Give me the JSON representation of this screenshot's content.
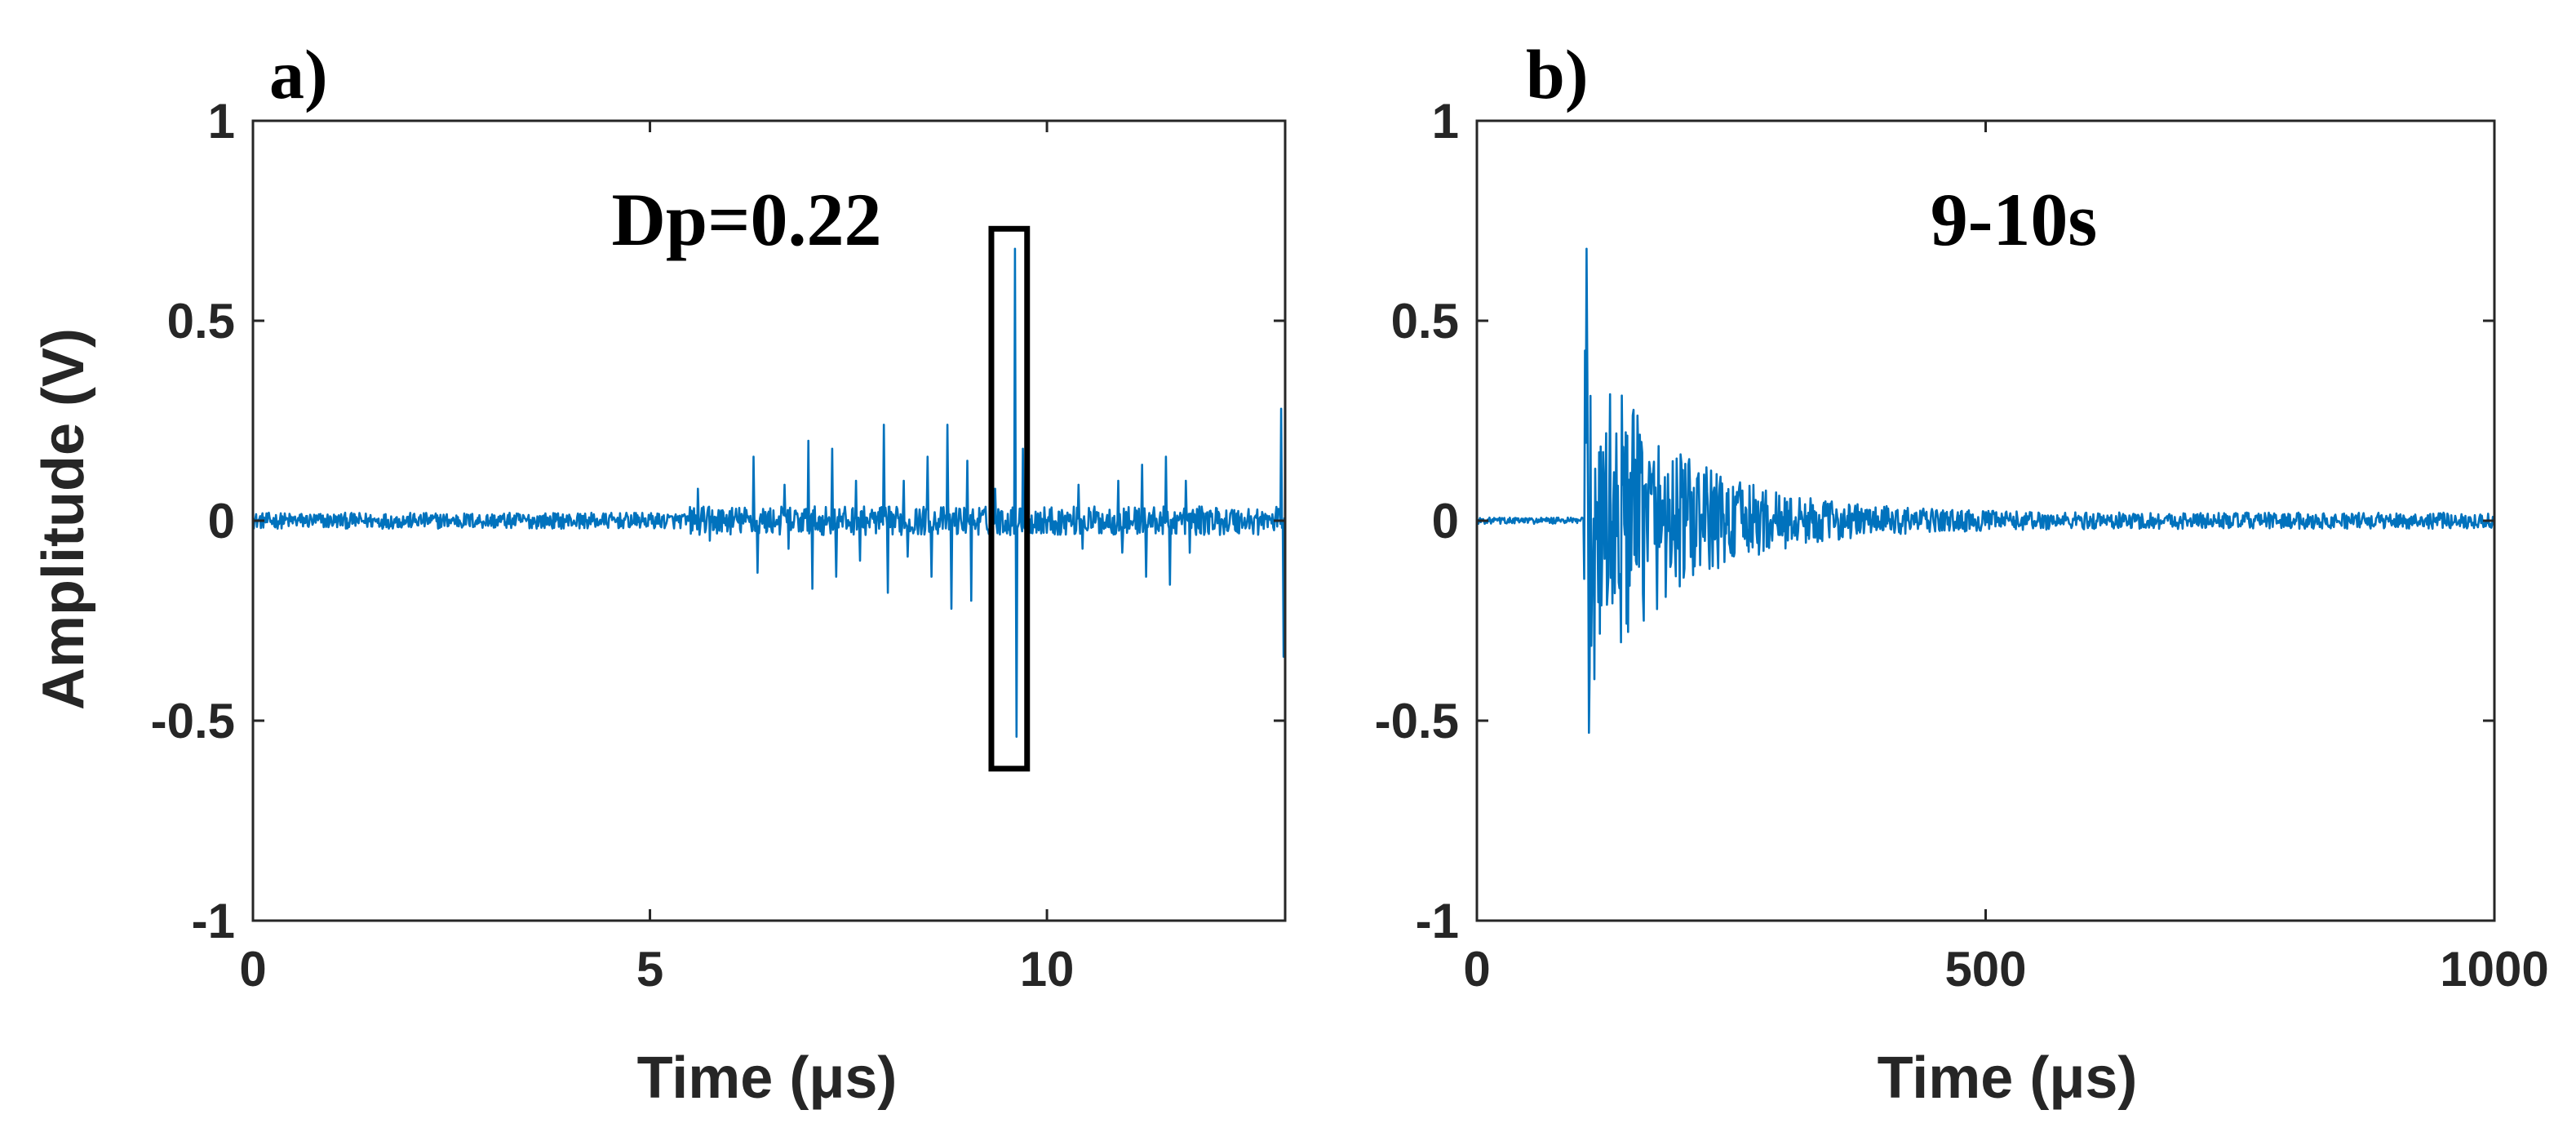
{
  "chart_data": [
    {
      "type": "line",
      "panel_label": "a)",
      "annotation": "Dp=0.22",
      "xlabel": "Time (μs)",
      "ylabel": "Amplitude (V)",
      "xlim": [
        0,
        13
      ],
      "ylim": [
        -1,
        1
      ],
      "xticks": [
        "0",
        "5",
        "10"
      ],
      "yticks": [
        "1",
        "0.5",
        "0",
        "-0.5",
        "-1"
      ],
      "grid": false,
      "line_color": "#0072BD",
      "noise_floor": 0.02,
      "spikes": [
        {
          "x": 5.6,
          "y": 0.08
        },
        {
          "x": 5.75,
          "y": -0.05
        },
        {
          "x": 6.3,
          "y": 0.16
        },
        {
          "x": 6.35,
          "y": -0.13
        },
        {
          "x": 6.7,
          "y": 0.09
        },
        {
          "x": 6.75,
          "y": -0.07
        },
        {
          "x": 7.0,
          "y": 0.2
        },
        {
          "x": 7.05,
          "y": -0.17
        },
        {
          "x": 7.3,
          "y": 0.18
        },
        {
          "x": 7.35,
          "y": -0.14
        },
        {
          "x": 7.6,
          "y": 0.1
        },
        {
          "x": 7.65,
          "y": -0.1
        },
        {
          "x": 7.95,
          "y": 0.24
        },
        {
          "x": 8.0,
          "y": -0.18
        },
        {
          "x": 8.2,
          "y": 0.1
        },
        {
          "x": 8.25,
          "y": -0.09
        },
        {
          "x": 8.5,
          "y": 0.16
        },
        {
          "x": 8.55,
          "y": -0.14
        },
        {
          "x": 8.75,
          "y": 0.24
        },
        {
          "x": 8.8,
          "y": -0.22
        },
        {
          "x": 9.0,
          "y": 0.15
        },
        {
          "x": 9.05,
          "y": -0.2
        },
        {
          "x": 9.35,
          "y": 0.08
        },
        {
          "x": 9.6,
          "y": 0.68
        },
        {
          "x": 9.62,
          "y": -0.54
        },
        {
          "x": 9.7,
          "y": 0.18
        },
        {
          "x": 9.75,
          "y": -0.15
        },
        {
          "x": 10.4,
          "y": 0.09
        },
        {
          "x": 10.45,
          "y": -0.07
        },
        {
          "x": 10.9,
          "y": 0.1
        },
        {
          "x": 10.95,
          "y": -0.08
        },
        {
          "x": 11.2,
          "y": 0.14
        },
        {
          "x": 11.25,
          "y": -0.14
        },
        {
          "x": 11.5,
          "y": 0.16
        },
        {
          "x": 11.55,
          "y": -0.16
        },
        {
          "x": 11.75,
          "y": 0.1
        },
        {
          "x": 11.8,
          "y": -0.08
        },
        {
          "x": 12.95,
          "y": 0.28
        },
        {
          "x": 12.98,
          "y": -0.34
        }
      ],
      "highlight_box": {
        "x0": 9.3,
        "x1": 9.75,
        "y0": -0.62,
        "y1": 0.73
      }
    },
    {
      "type": "line",
      "panel_label": "b)",
      "annotation": "9-10s",
      "xlabel": "Time (μs)",
      "ylabel": "",
      "xlim": [
        0,
        1000
      ],
      "ylim": [
        -1,
        1
      ],
      "xticks": [
        "0",
        "500",
        "1000"
      ],
      "yticks": [
        "1",
        "0.5",
        "0",
        "-0.5",
        "-1"
      ],
      "grid": false,
      "line_color": "#0072BD",
      "onset_time": 105,
      "peak_positive": 0.68,
      "peak_negative": -0.53,
      "decay_constant_us": 90,
      "noise_floor": 0.008
    }
  ]
}
